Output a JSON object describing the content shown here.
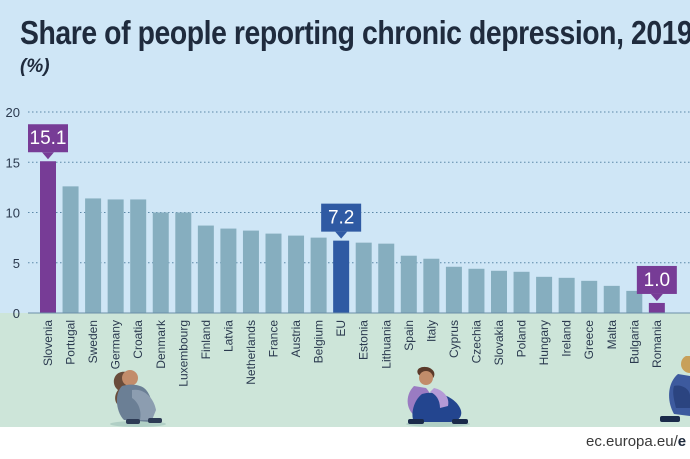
{
  "title": "Share of people reporting chronic depression, 2019",
  "unit_label": "(%)",
  "source": {
    "text": "ec.europa.eu/",
    "bold": "e"
  },
  "colors": {
    "bar": "#86aebf",
    "slovenia": "#773c96",
    "eu": "#2f5aa3",
    "romania": "#773c96",
    "sky": "#cfe6f6",
    "ground": "#cde5d9",
    "text": "#1f2b3d"
  },
  "chart_data": {
    "type": "bar",
    "title": "Share of people reporting chronic depression, 2019",
    "ylabel": "(%)",
    "xlabel": "",
    "ylim": [
      0,
      20
    ],
    "yticks": [
      0,
      5,
      10,
      15,
      20
    ],
    "grid": true,
    "categories": [
      "Slovenia",
      "Portugal",
      "Sweden",
      "Germany",
      "Croatia",
      "Denmark",
      "Luxembourg",
      "Finland",
      "Latvia",
      "Netherlands",
      "France",
      "Austria",
      "Belgium",
      "EU",
      "Estonia",
      "Lithuania",
      "Spain",
      "Italy",
      "Cyprus",
      "Czechia",
      "Slovakia",
      "Poland",
      "Hungary",
      "Ireland",
      "Greece",
      "Malta",
      "Bulgaria",
      "Romania"
    ],
    "values": [
      15.1,
      12.6,
      11.4,
      11.3,
      11.3,
      10.0,
      10.0,
      8.7,
      8.4,
      8.2,
      7.9,
      7.7,
      7.5,
      7.2,
      7.0,
      6.9,
      5.7,
      5.4,
      4.6,
      4.4,
      4.2,
      4.1,
      3.6,
      3.5,
      3.2,
      2.7,
      2.2,
      1.0
    ],
    "highlights": [
      {
        "category": "Slovenia",
        "label": "15.1",
        "color_key": "slovenia"
      },
      {
        "category": "EU",
        "label": "7.2",
        "color_key": "eu"
      },
      {
        "category": "Romania",
        "label": "1.0",
        "color_key": "romania"
      }
    ]
  }
}
